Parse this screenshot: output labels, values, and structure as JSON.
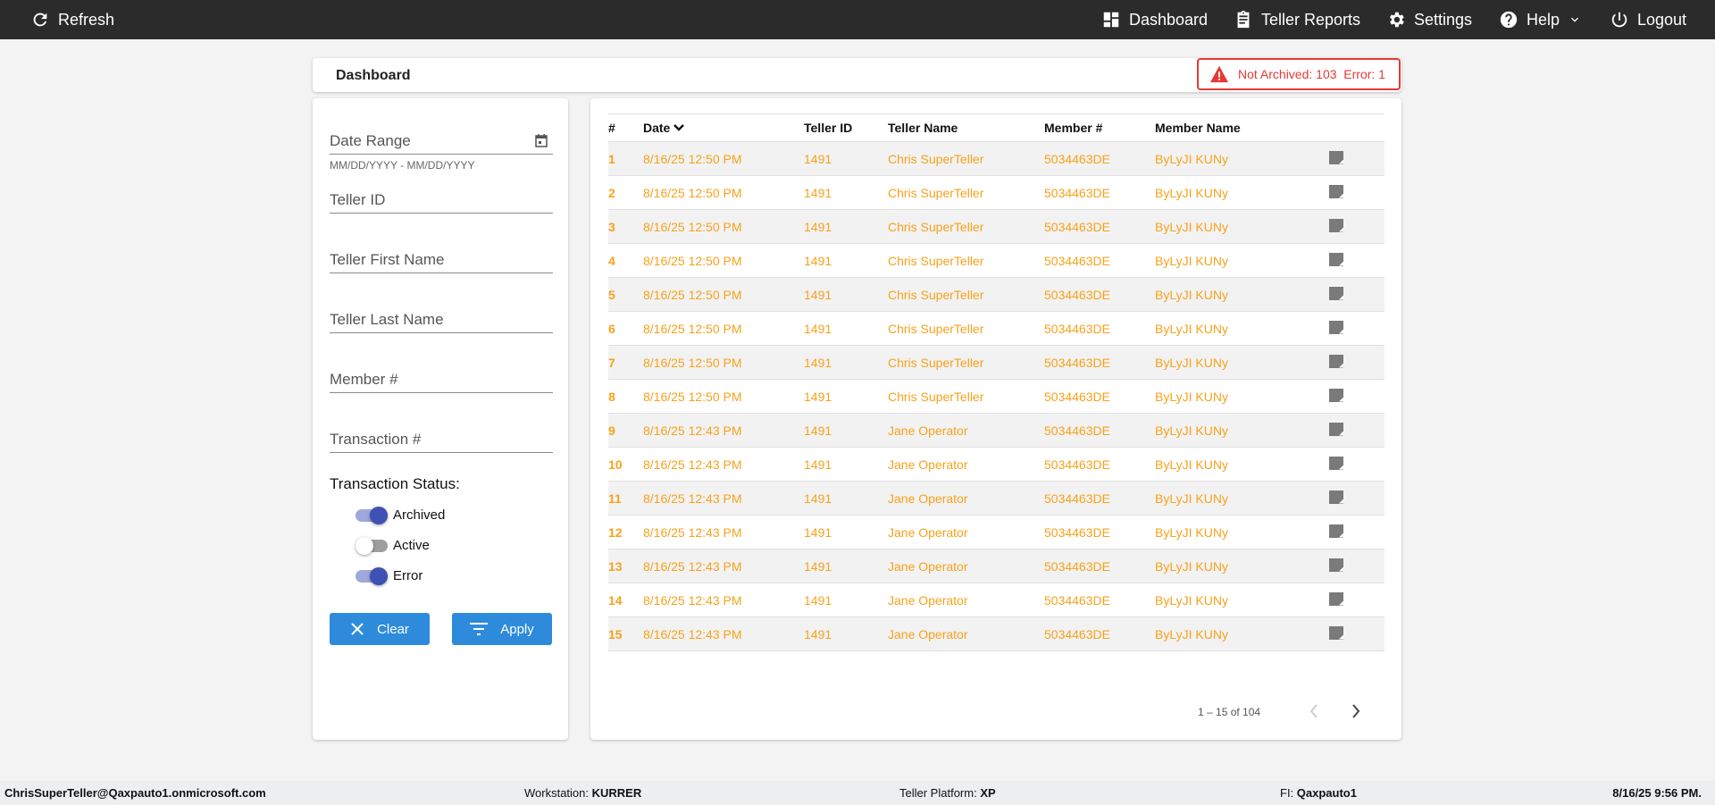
{
  "topbar": {
    "refresh": "Refresh",
    "dashboard": "Dashboard",
    "teller_reports": "Teller Reports",
    "settings": "Settings",
    "help": "Help",
    "logout": "Logout"
  },
  "header": {
    "title": "Dashboard",
    "alert": "Not Archived: 103  Error: 1",
    "alert_color": "#e53935"
  },
  "filters": {
    "date_range": "Date Range",
    "date_hint": "MM/DD/YYYY - MM/DD/YYYY",
    "teller_id": "Teller ID",
    "teller_first": "Teller First Name",
    "teller_last": "Teller Last Name",
    "member": "Member #",
    "transaction": "Transaction #",
    "status_title": "Transaction Status:",
    "toggles": [
      {
        "label": "Archived",
        "on": true
      },
      {
        "label": "Active",
        "on": false
      },
      {
        "label": "Error",
        "on": true
      }
    ],
    "clear": "Clear",
    "apply": "Apply"
  },
  "table": {
    "columns": [
      "#",
      "Date",
      "Teller ID",
      "Teller Name",
      "Member #",
      "Member Name"
    ],
    "rows": [
      [
        "1",
        "8/16/25 12:50 PM",
        "1491",
        "Chris SuperTeller",
        "5034463DE",
        "ByLyJI KUNy"
      ],
      [
        "2",
        "8/16/25 12:50 PM",
        "1491",
        "Chris SuperTeller",
        "5034463DE",
        "ByLyJI KUNy"
      ],
      [
        "3",
        "8/16/25 12:50 PM",
        "1491",
        "Chris SuperTeller",
        "5034463DE",
        "ByLyJI KUNy"
      ],
      [
        "4",
        "8/16/25 12:50 PM",
        "1491",
        "Chris SuperTeller",
        "5034463DE",
        "ByLyJI KUNy"
      ],
      [
        "5",
        "8/16/25 12:50 PM",
        "1491",
        "Chris SuperTeller",
        "5034463DE",
        "ByLyJI KUNy"
      ],
      [
        "6",
        "8/16/25 12:50 PM",
        "1491",
        "Chris SuperTeller",
        "5034463DE",
        "ByLyJI KUNy"
      ],
      [
        "7",
        "8/16/25 12:50 PM",
        "1491",
        "Chris SuperTeller",
        "5034463DE",
        "ByLyJI KUNy"
      ],
      [
        "8",
        "8/16/25 12:50 PM",
        "1491",
        "Chris SuperTeller",
        "5034463DE",
        "ByLyJI KUNy"
      ],
      [
        "9",
        "8/16/25 12:43 PM",
        "1491",
        "Jane Operator",
        "5034463DE",
        "ByLyJI KUNy"
      ],
      [
        "10",
        "8/16/25 12:43 PM",
        "1491",
        "Jane Operator",
        "5034463DE",
        "ByLyJI KUNy"
      ],
      [
        "11",
        "8/16/25 12:43 PM",
        "1491",
        "Jane Operator",
        "5034463DE",
        "ByLyJI KUNy"
      ],
      [
        "12",
        "8/16/25 12:43 PM",
        "1491",
        "Jane Operator",
        "5034463DE",
        "ByLyJI KUNy"
      ],
      [
        "13",
        "8/16/25 12:43 PM",
        "1491",
        "Jane Operator",
        "5034463DE",
        "ByLyJI KUNy"
      ],
      [
        "14",
        "8/16/25 12:43 PM",
        "1491",
        "Jane Operator",
        "5034463DE",
        "ByLyJI KUNy"
      ],
      [
        "15",
        "8/16/25 12:43 PM",
        "1491",
        "Jane Operator",
        "5034463DE",
        "ByLyJI KUNy"
      ]
    ],
    "row_color": "#f7a21b",
    "pagination": "1 – 15 of 104"
  },
  "footer": {
    "user": "ChrisSuperTeller@Qaxpauto1.onmicrosoft.com",
    "workstation_label": "Workstation: ",
    "workstation": "KURRER",
    "platform_label": "Teller Platform: ",
    "platform": "XP",
    "fi_label": "FI: ",
    "fi": "Qaxpauto1",
    "datetime": "8/16/25 9:56 PM."
  }
}
